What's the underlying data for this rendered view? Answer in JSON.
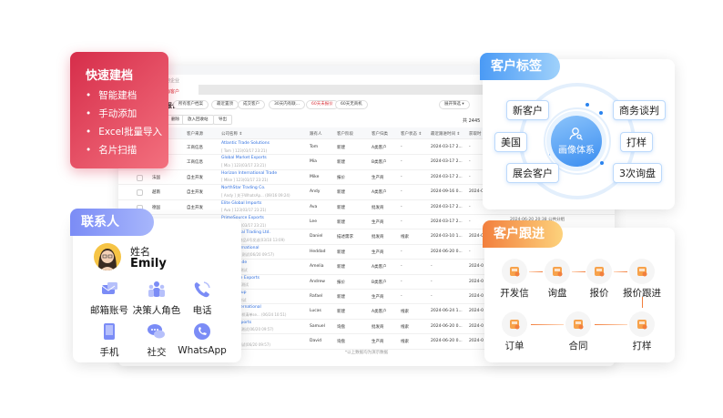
{
  "quick_create": {
    "title": "快速建档",
    "items": [
      "智能建档",
      "手动添加",
      "Excel批量导入",
      "名片扫描"
    ],
    "color": "#d62d4a"
  },
  "crm": {
    "breadcrumb": "用企业",
    "tab": "海客户",
    "title": "报价▾",
    "chips": [
      "所有客户档案",
      "最近置顶",
      "成交客户",
      "30天内有联...",
      "60天未报价",
      "60天无商机"
    ],
    "chip_active": "60天未报价",
    "filter": "展开筛选 ▾",
    "buttons": [
      "删除",
      "放入回收站",
      "导出"
    ],
    "total": "共 2445",
    "columns": [
      "客户来源",
      "公司名称 ⇕",
      "跟有人",
      "客户阶段",
      "客户归类",
      "客户状态 ⇕",
      "最近跟进时间 ⇕",
      "获取时"
    ],
    "rows": [
      {
        "country": "",
        "source": "工商信息",
        "company": "Atlantic Trade Solutions",
        "sub": "[ Tom ] 123(03/17 23:21)",
        "owner": "Tom",
        "stage": "新建",
        "type": "A类客户",
        "status": "-",
        "last": "2024-03-17 2...",
        "got": "-"
      },
      {
        "country": "",
        "source": "工商信息",
        "company": "Global Market Exports",
        "sub": "[ Mia ] 123(03/17 23:21)",
        "owner": "Mia",
        "stage": "新建",
        "type": "B类客户",
        "status": "-",
        "last": "2024-03-17 2...",
        "got": "-"
      },
      {
        "country": "法国",
        "source": "自主开发",
        "company": "Horizon International Trade",
        "sub": "[ Mike ] 123(03/17 23:21)",
        "owner": "Mike",
        "stage": "报价",
        "type": "生产商",
        "status": "-",
        "last": "2024-03-17 2...",
        "got": "-"
      },
      {
        "country": "越南",
        "source": "自主开发",
        "company": "NorthStar Trading Co.",
        "sub": "[ Andy ] 关于WhatsAp... (09/16 09:24)",
        "owner": "Andy",
        "stage": "新建",
        "type": "A类客户",
        "status": "-",
        "last": "2024-09-16 0...",
        "got": "2024-0"
      },
      {
        "country": "德国",
        "source": "自主开发",
        "company": "Elite Global Imports",
        "sub": "[ Ava ] 123(03/17 23:21)",
        "owner": "Ava",
        "stage": "新建",
        "type": "批发商",
        "status": "-",
        "last": "2024-03-17 2...",
        "got": "-"
      },
      {
        "country": "",
        "source": "",
        "company": "PrimeSource Exports",
        "sub": "[ Lee ] 123(03/17 23:21)",
        "owner": "Lee",
        "stage": "新建",
        "type": "生产商",
        "status": "-",
        "last": "2024-03-17 2...",
        "got": "-"
      },
      {
        "country": "",
        "source": "",
        "company": "Continental Trading Ltd.",
        "sub": "[ Daniel ] 商品4号发送(03/10 13:09)",
        "owner": "Daniel",
        "stage": "描述需求",
        "type": "批发商",
        "status": "线索",
        "last": "2024-03-10 1...",
        "got": "2024-0"
      },
      {
        "country": "",
        "source": "",
        "company": "Edge International",
        "sub": "[ Heddad ] 测试(06/20 09:57)",
        "owner": "Heddad",
        "stage": "新建",
        "type": "生产商",
        "status": "-",
        "last": "2024-06-20 0...",
        "got": "-"
      },
      {
        "country": "",
        "source": "",
        "company": "Global Trade",
        "sub": "[ Amelia ] 测试",
        "owner": "Amelia",
        "stage": "新建",
        "type": "A类客户",
        "status": "-",
        "last": "-",
        "got": "2024-0"
      },
      {
        "country": "",
        "source": "",
        "company": "Worldwide Exports",
        "sub": "[ Andrew ] 测试",
        "owner": "Andrew",
        "stage": "报价",
        "type": "B类客户",
        "status": "-",
        "last": "-",
        "got": "2024-0"
      },
      {
        "country": "",
        "source": "",
        "company": "Trade Group",
        "sub": "[ Rafael ] 测试",
        "owner": "Rafael",
        "stage": "新建",
        "type": "生产商",
        "status": "-",
        "last": "-",
        "got": "2024-0"
      },
      {
        "country": "",
        "source": "",
        "company": "Winds International",
        "sub": "[ Lucas ] 看样清单se... (06/24 10:51)",
        "owner": "Lucas",
        "stage": "新建",
        "type": "A类客户",
        "status": "线索",
        "last": "2024-06-24 1...",
        "got": "2024-0"
      },
      {
        "country": "",
        "source": "",
        "company": "Global Imports",
        "sub": "[ Samuel ] 测试(06/20 09:57)",
        "owner": "Samuel",
        "stage": "询盘",
        "type": "批发商",
        "status": "线索",
        "last": "2024-06-20 0...",
        "got": "2024-0"
      },
      {
        "country": "",
        "source": "",
        "company": "Trade Co.",
        "sub": "[ David ] 测试(06/20 09:57)",
        "owner": "David",
        "stage": "询盘",
        "type": "生产商",
        "status": "线索",
        "last": "2024-06-20 0...",
        "got": "2024-0"
      }
    ],
    "footnote": "*以上数据均为演示数据",
    "behind_text": "2024-06-20 20:38  公共分组"
  },
  "contact": {
    "title": "联系人",
    "name_label": "姓名",
    "name": "Emily",
    "items": [
      {
        "label": "邮箱账号",
        "icon": "mail-icon"
      },
      {
        "label": "决策人角色",
        "icon": "people-icon"
      },
      {
        "label": "电话",
        "icon": "phone-icon"
      },
      {
        "label": "手机",
        "icon": "mobile-icon"
      },
      {
        "label": "社交",
        "icon": "chat-icon"
      },
      {
        "label": "WhatsApp",
        "icon": "whatsapp-icon"
      }
    ],
    "color": "#7b8cf6"
  },
  "tags": {
    "title": "客户标签",
    "center": "画像体系",
    "items": [
      "新客户",
      "美国",
      "展会客户",
      "商务谈判",
      "打样",
      "3次询盘"
    ],
    "color": "#4a9af5"
  },
  "follow": {
    "title": "客户跟进",
    "steps": [
      "开发信",
      "询盘",
      "报价",
      "报价跟进",
      "打样",
      "合同",
      "订单"
    ],
    "color": "#f27f3d"
  }
}
